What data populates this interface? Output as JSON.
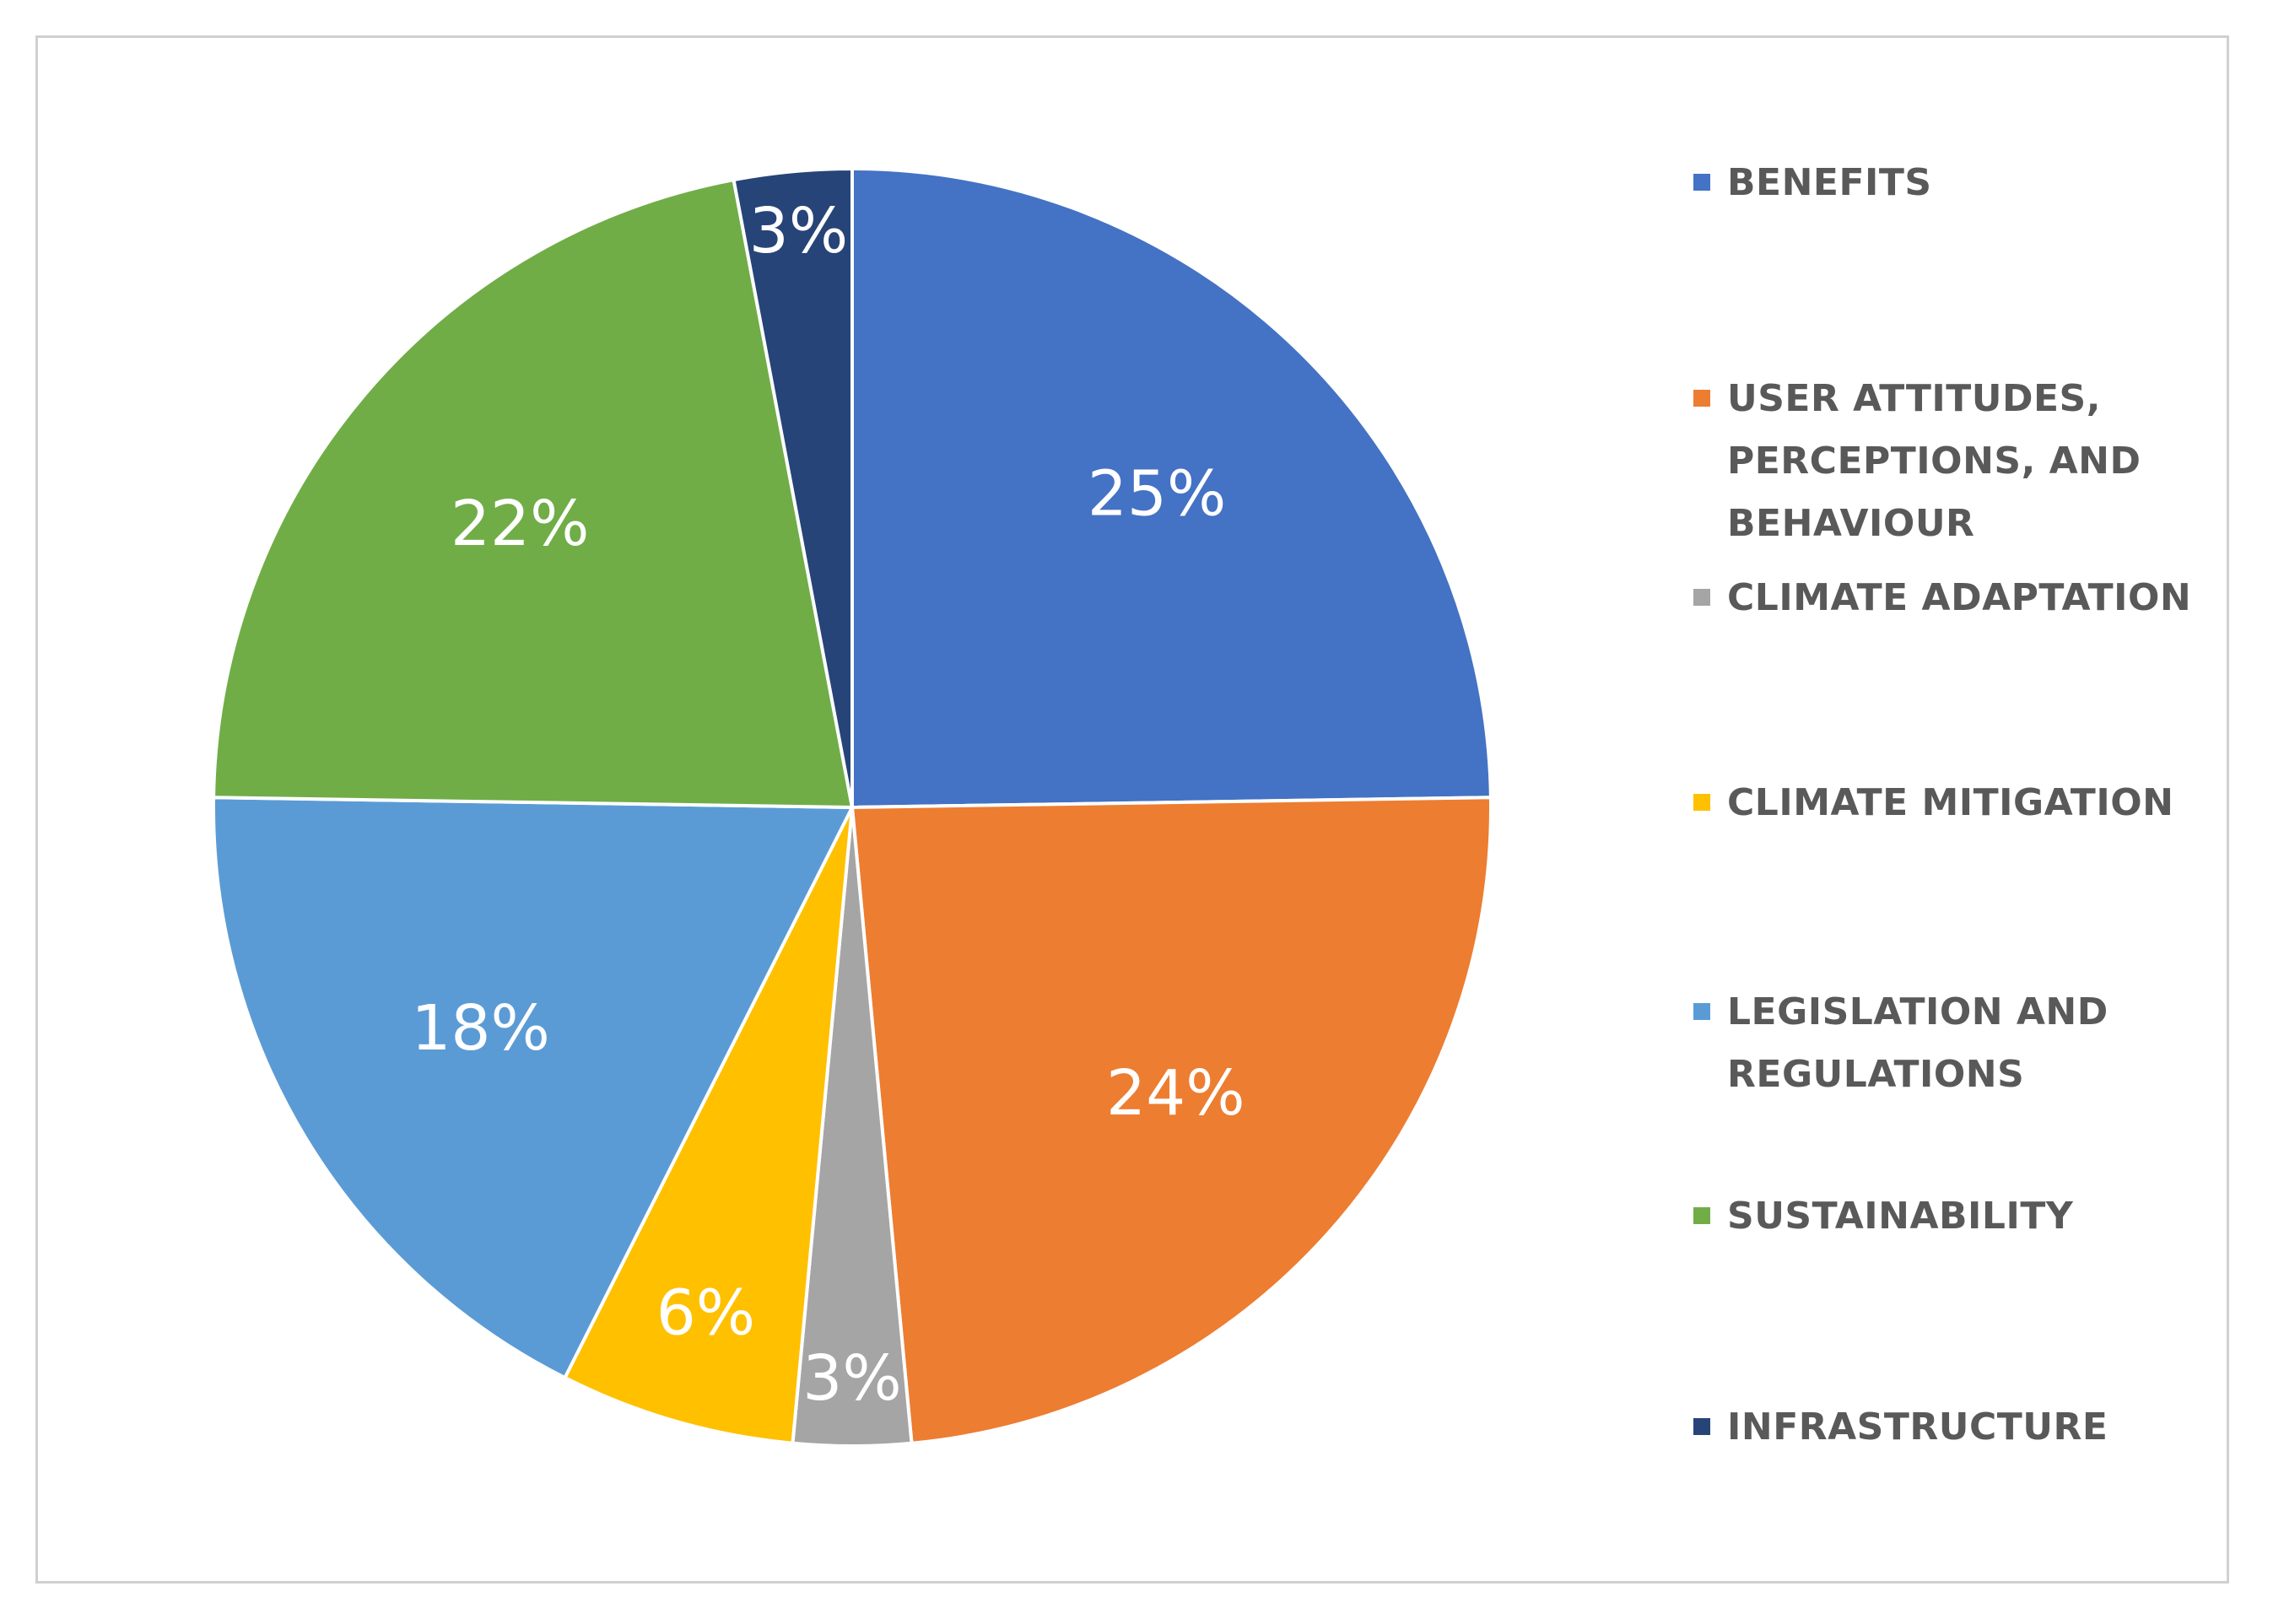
{
  "chart_data": {
    "type": "pie",
    "title": "",
    "start_angle_deg": 0,
    "direction": "clockwise",
    "slices": [
      {
        "name": "BENEFITS",
        "value": 25,
        "label": "25%",
        "color": "#4472C4"
      },
      {
        "name": "USER ATTITUDES, PERCEPTIONS, AND BEHAVIOUR",
        "value": 24,
        "label": "24%",
        "color": "#ED7D31"
      },
      {
        "name": "CLIMATE ADAPTATION",
        "value": 3,
        "label": "3%",
        "color": "#A5A5A5"
      },
      {
        "name": "CLIMATE MITIGATION",
        "value": 6,
        "label": "6%",
        "color": "#FFC000"
      },
      {
        "name": "LEGISLATION AND REGULATIONS",
        "value": 18,
        "label": "18%",
        "color": "#5B9BD5"
      },
      {
        "name": "SUSTAINABILITY",
        "value": 22,
        "label": "22%",
        "color": "#70AD47"
      },
      {
        "name": "INFRASTRUCTURE",
        "value": 3,
        "label": "3%",
        "color": "#264478"
      }
    ],
    "legend": {
      "position": "right",
      "items": [
        "BENEFITS",
        "USER ATTITUDES,\nPERCEPTIONS, AND\nBEHAVIOUR",
        "CLIMATE ADAPTATION",
        "CLIMATE MITIGATION",
        "LEGISLATION AND\nREGULATIONS",
        "SUSTAINABILITY",
        "INFRASTRUCTURE"
      ]
    }
  }
}
